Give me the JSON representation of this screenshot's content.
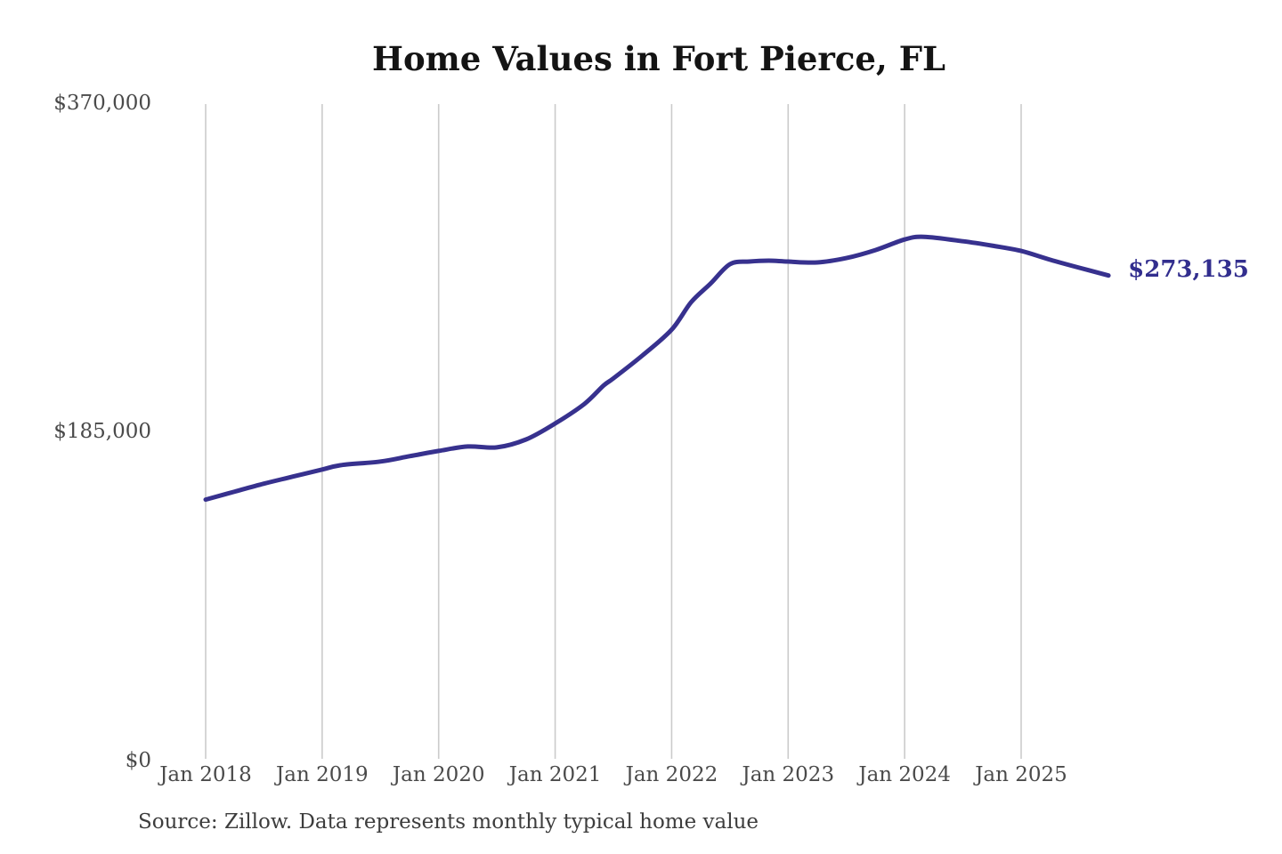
{
  "chart": {
    "title": "Home Values in Fort Pierce, FL",
    "annotation": {
      "end_value_label": "$273,135"
    },
    "source_note": "Source: Zillow. Data represents monthly typical home value",
    "y_axis": {
      "tick_labels": [
        "$370,000",
        "$185,000",
        "$0"
      ]
    },
    "x_axis": {
      "tick_labels": [
        "Jan 2018",
        "Jan 2019",
        "Jan 2020",
        "Jan 2021",
        "Jan 2022",
        "Jan 2023",
        "Jan 2024",
        "Jan 2025"
      ]
    },
    "colors": {
      "line": "#37318e",
      "annotation_text": "#322e8e",
      "gridline": "#cbcbcb",
      "title_text": "#141414",
      "axis_text": "#4a4a4a",
      "source_text": "#3d3d3d",
      "background": "#ffffff"
    }
  },
  "chart_data": {
    "type": "line",
    "title": "Home Values in Fort Pierce, FL",
    "series_name": "Monthly typical home value",
    "unit": "USD",
    "source": "Zillow",
    "grid": "vertical-only",
    "legend": "none",
    "ylim": [
      0,
      370000
    ],
    "yticks": [
      {
        "value": 370000,
        "label": "$370,000"
      },
      {
        "value": 185000,
        "label": "$185,000"
      },
      {
        "value": 0,
        "label": "$0"
      }
    ],
    "xticks": [
      "Jan 2018",
      "Jan 2019",
      "Jan 2020",
      "Jan 2021",
      "Jan 2022",
      "Jan 2023",
      "Jan 2024",
      "Jan 2025"
    ],
    "end_value_label": "$273,135",
    "points": [
      {
        "t": "2018-01",
        "v": 146500
      },
      {
        "t": "2018-04",
        "v": 151000
      },
      {
        "t": "2018-07",
        "v": 155500
      },
      {
        "t": "2018-10",
        "v": 159500
      },
      {
        "t": "2019-01",
        "v": 163500
      },
      {
        "t": "2019-03",
        "v": 166000
      },
      {
        "t": "2019-07",
        "v": 168000
      },
      {
        "t": "2019-10",
        "v": 171000
      },
      {
        "t": "2020-01",
        "v": 174000
      },
      {
        "t": "2020-04",
        "v": 176500
      },
      {
        "t": "2020-07",
        "v": 176000
      },
      {
        "t": "2020-10",
        "v": 180500
      },
      {
        "t": "2021-01",
        "v": 189500
      },
      {
        "t": "2021-04",
        "v": 200500
      },
      {
        "t": "2021-06",
        "v": 211000
      },
      {
        "t": "2021-07",
        "v": 215000
      },
      {
        "t": "2021-10",
        "v": 228000
      },
      {
        "t": "2022-01",
        "v": 242500
      },
      {
        "t": "2022-03",
        "v": 258000
      },
      {
        "t": "2022-05",
        "v": 268500
      },
      {
        "t": "2022-07",
        "v": 279500
      },
      {
        "t": "2022-09",
        "v": 281000
      },
      {
        "t": "2022-11",
        "v": 281500
      },
      {
        "t": "2023-01",
        "v": 281000
      },
      {
        "t": "2023-04",
        "v": 280500
      },
      {
        "t": "2023-07",
        "v": 283000
      },
      {
        "t": "2023-10",
        "v": 287500
      },
      {
        "t": "2024-01",
        "v": 293500
      },
      {
        "t": "2024-03",
        "v": 295000
      },
      {
        "t": "2024-07",
        "v": 292500
      },
      {
        "t": "2024-10",
        "v": 290000
      },
      {
        "t": "2025-01",
        "v": 287000
      },
      {
        "t": "2025-04",
        "v": 282000
      },
      {
        "t": "2025-07",
        "v": 277500
      },
      {
        "t": "2025-10",
        "v": 273135
      }
    ]
  }
}
